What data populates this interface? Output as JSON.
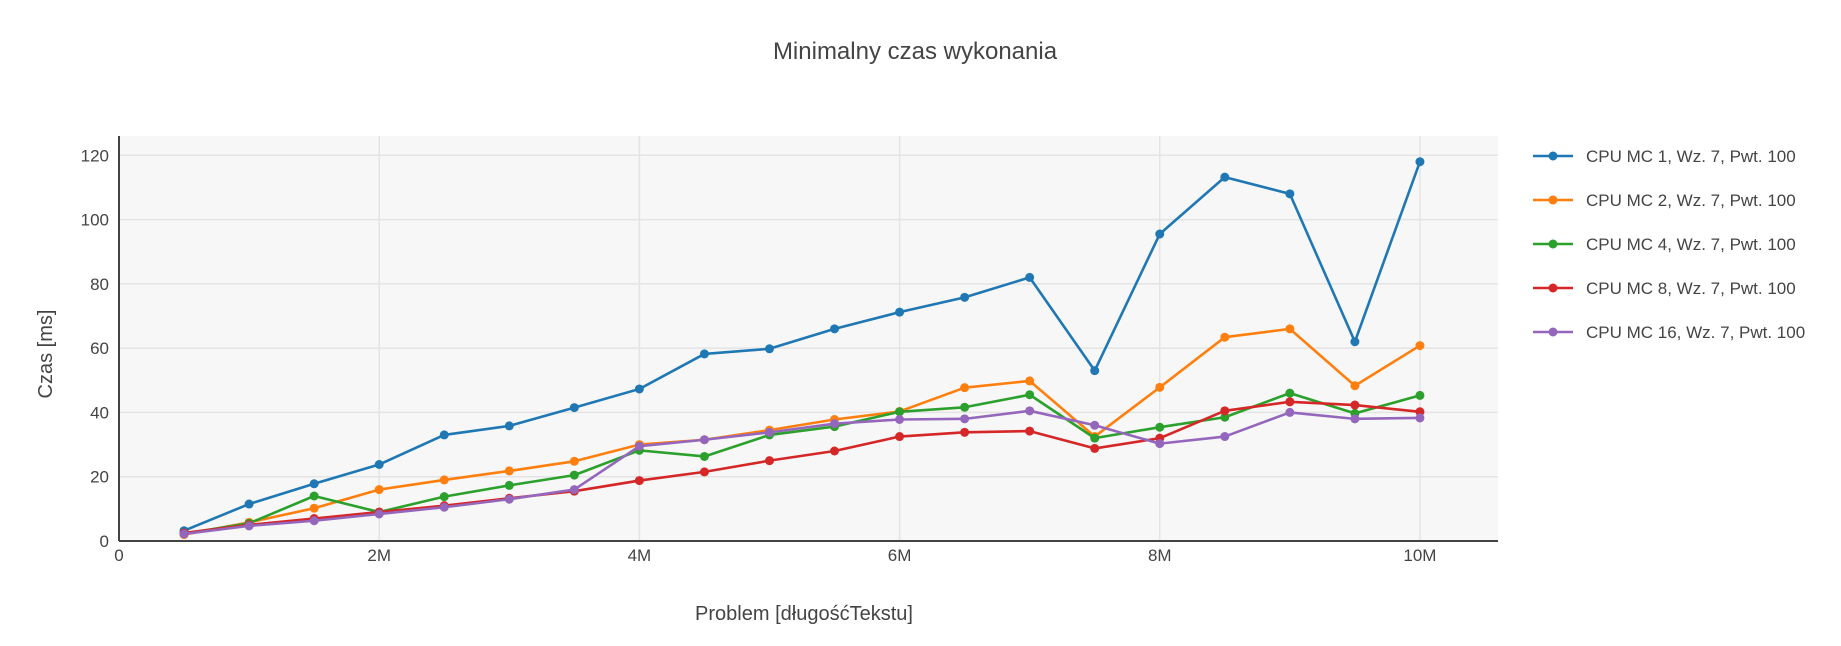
{
  "chart_data": {
    "type": "line",
    "title": "Minimalny czas wykonania",
    "xlabel": "Problem [długośćTekstu]",
    "ylabel": "Czas [ms]",
    "xlim": [
      0,
      10600000
    ],
    "ylim": [
      0,
      126
    ],
    "x_ticks": [
      {
        "value": 0,
        "label": "0"
      },
      {
        "value": 2000000,
        "label": "2M"
      },
      {
        "value": 4000000,
        "label": "4M"
      },
      {
        "value": 6000000,
        "label": "6M"
      },
      {
        "value": 8000000,
        "label": "8M"
      },
      {
        "value": 10000000,
        "label": "10M"
      }
    ],
    "y_ticks": [
      {
        "value": 0,
        "label": "0"
      },
      {
        "value": 20,
        "label": "20"
      },
      {
        "value": 40,
        "label": "40"
      },
      {
        "value": 60,
        "label": "60"
      },
      {
        "value": 80,
        "label": "80"
      },
      {
        "value": 100,
        "label": "100"
      },
      {
        "value": 120,
        "label": "120"
      }
    ],
    "grid": true,
    "legend_position": "right",
    "x": [
      500000,
      1000000,
      1500000,
      2000000,
      2500000,
      3000000,
      3500000,
      4000000,
      4500000,
      5000000,
      5500000,
      6000000,
      6500000,
      7000000,
      7500000,
      8000000,
      8500000,
      9000000,
      9500000,
      10000000
    ],
    "series": [
      {
        "name": "CPU MC 1, Wz. 7, Pwt. 100",
        "color": "#1f77b4",
        "values": [
          3.2,
          11.5,
          17.8,
          23.8,
          33.0,
          35.8,
          41.5,
          47.3,
          58.2,
          59.8,
          66.0,
          71.2,
          75.8,
          82.0,
          53.0,
          95.5,
          113.2,
          108.0,
          62.0,
          118.0
        ]
      },
      {
        "name": "CPU MC 2, Wz. 7, Pwt. 100",
        "color": "#ff7f0e",
        "values": [
          2.0,
          5.8,
          10.2,
          16.0,
          19.0,
          21.8,
          24.8,
          30.0,
          31.5,
          34.5,
          37.8,
          40.3,
          47.7,
          49.8,
          32.5,
          47.8,
          63.4,
          66.0,
          48.3,
          60.8
        ]
      },
      {
        "name": "CPU MC 4, Wz. 7, Pwt. 100",
        "color": "#2ca02c",
        "values": [
          2.3,
          5.5,
          14.0,
          9.0,
          13.8,
          17.3,
          20.5,
          28.2,
          26.3,
          33.0,
          35.6,
          40.2,
          41.6,
          45.5,
          32.0,
          35.4,
          38.5,
          46.0,
          39.7,
          45.3
        ]
      },
      {
        "name": "CPU MC 8, Wz. 7, Pwt. 100",
        "color": "#d62728",
        "values": [
          2.5,
          5.0,
          7.0,
          9.0,
          11.0,
          13.3,
          15.5,
          18.8,
          21.5,
          25.0,
          28.0,
          32.5,
          33.8,
          34.2,
          28.8,
          32.0,
          40.5,
          43.3,
          42.3,
          40.2
        ]
      },
      {
        "name": "CPU MC 16, Wz. 7, Pwt. 100",
        "color": "#9467bd",
        "values": [
          2.2,
          4.7,
          6.3,
          8.4,
          10.5,
          13.0,
          16.0,
          29.5,
          31.5,
          33.8,
          36.5,
          37.8,
          38.0,
          40.5,
          36.0,
          30.3,
          32.5,
          40.0,
          38.0,
          38.3
        ]
      }
    ]
  },
  "colors": {
    "plot_background": "#f7f7f7",
    "grid": "#e4e4e4",
    "axis_line": "#444444"
  }
}
